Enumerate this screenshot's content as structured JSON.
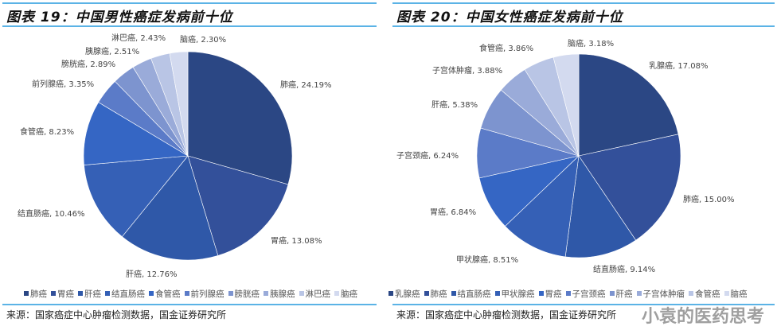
{
  "chart_data": [
    {
      "type": "pie",
      "title": "图表 19：中国男性癌症发病前十位",
      "categories": [
        "肺癌",
        "胃癌",
        "肝癌",
        "结直肠癌",
        "食管癌",
        "前列腺癌",
        "膀胱癌",
        "胰腺癌",
        "淋巴癌",
        "脑癌"
      ],
      "values": [
        24.19,
        13.08,
        12.76,
        10.46,
        8.23,
        3.35,
        2.89,
        2.51,
        2.43,
        2.3
      ],
      "labels": [
        "肺癌, 24.19%",
        "胃癌, 13.08%",
        "肝癌, 12.76%",
        "结直肠癌, 10.46%",
        "食管癌, 8.23%",
        "前列腺癌, 3.35%",
        "膀胱癌, 2.89%",
        "胰腺癌, 2.51%",
        "淋巴癌, 2.43%",
        "脑癌, 2.30%"
      ],
      "colors": [
        "#2b4784",
        "#33509a",
        "#2f58a8",
        "#3560b6",
        "#3566c4",
        "#5b7bc8",
        "#7d94cf",
        "#9aabd9",
        "#b9c5e5",
        "#d3daef"
      ],
      "legend": "bottom"
    },
    {
      "type": "pie",
      "title": "图表 20：中国女性癌症发病前十位",
      "categories": [
        "乳腺癌",
        "肺癌",
        "结直肠癌",
        "甲状腺癌",
        "胃癌",
        "子宫颈癌",
        "肝癌",
        "子宫体肿瘤",
        "食管癌",
        "脑癌"
      ],
      "values": [
        17.08,
        15.0,
        9.14,
        8.51,
        6.84,
        6.24,
        5.38,
        3.88,
        3.86,
        3.18
      ],
      "labels": [
        "乳腺癌, 17.08%",
        "肺癌, 15.00%",
        "结直肠癌, 9.14%",
        "甲状腺癌, 8.51%",
        "胃癌, 6.84%",
        "子宫颈癌, 6.24%",
        "肝癌, 5.38%",
        "子宫体肿瘤, 3.88%",
        "食管癌, 3.86%",
        "脑癌, 3.18%"
      ],
      "colors": [
        "#2b4784",
        "#33509a",
        "#2f58a8",
        "#3560b6",
        "#3566c4",
        "#5b7bc8",
        "#7d94cf",
        "#9aabd9",
        "#b9c5e5",
        "#d3daef"
      ],
      "legend": "bottom"
    }
  ],
  "source": "来源：国家癌症中心肿瘤检测数据，国金证券研究所",
  "watermark": "小袁的医药思考"
}
